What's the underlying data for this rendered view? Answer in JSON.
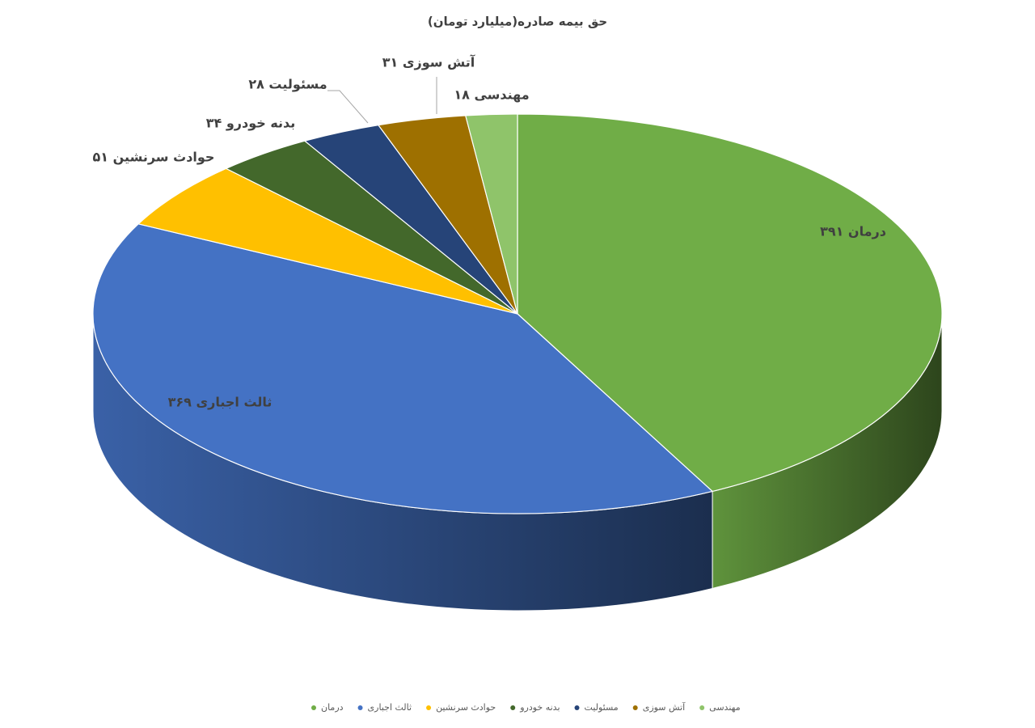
{
  "chart_data": {
    "type": "pie3d",
    "title": "حق بیمه صادره(میلیارد تومان)",
    "categories": [
      "درمان",
      "ثالث اجباری",
      "حوادث سرنشین",
      "بدنه خودرو",
      "مسئولیت",
      "آتش سوزی",
      "مهندسی"
    ],
    "values": [
      391,
      369,
      51,
      34,
      28,
      31,
      18
    ],
    "value_labels": [
      "درمان ۳۹۱",
      "ثالث اجباری ۳۶۹",
      "حوادث سرنشین ۵۱",
      "بدنه خودرو ۳۴",
      "مسئولیت ۲۸",
      "آتش سوزی ۳۱",
      "مهندسی ۱۸"
    ],
    "colors": [
      "#70ad47",
      "#4472c4",
      "#ffc000",
      "#43682b",
      "#264478",
      "#9e7000",
      "#8fc46a"
    ],
    "legend": "bottom"
  }
}
